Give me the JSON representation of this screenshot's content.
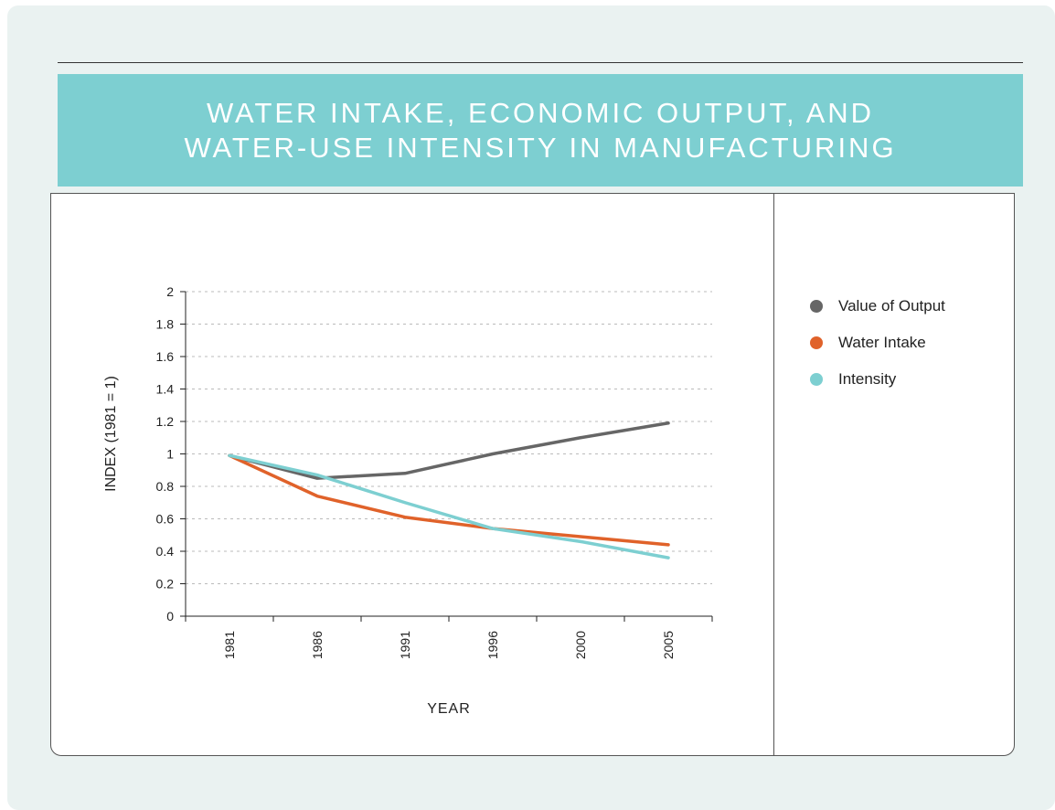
{
  "title": {
    "line1": "WATER INTAKE, ECONOMIC OUTPUT, AND",
    "line2": "WATER-USE INTENSITY IN MANUFACTURING"
  },
  "colors": {
    "title_band": "#7dcfd1",
    "background": "#eaf2f1",
    "value_of_output": "#666666",
    "water_intake": "#e0622a",
    "intensity": "#7dcfd1"
  },
  "chart_data": {
    "type": "line",
    "x": [
      "1981",
      "1986",
      "1991",
      "1996",
      "2000",
      "2005"
    ],
    "series": [
      {
        "name": "Value of Output",
        "values": [
          0.99,
          0.85,
          0.88,
          1.0,
          1.1,
          1.19
        ]
      },
      {
        "name": "Water Intake",
        "values": [
          0.99,
          0.74,
          0.61,
          0.54,
          0.49,
          0.44
        ]
      },
      {
        "name": "Intensity",
        "values": [
          0.99,
          0.87,
          0.7,
          0.54,
          0.46,
          0.36
        ]
      }
    ],
    "xlabel": "YEAR",
    "ylabel": "INDEX (1981 = 1)",
    "ylim": [
      0,
      2
    ],
    "yticks": [
      "0",
      "0.2",
      "0.4",
      "0.6",
      "0.8",
      "1",
      "1.2",
      "1.4",
      "1.6",
      "1.8",
      "2"
    ],
    "grid": true,
    "legend_position": "right"
  }
}
